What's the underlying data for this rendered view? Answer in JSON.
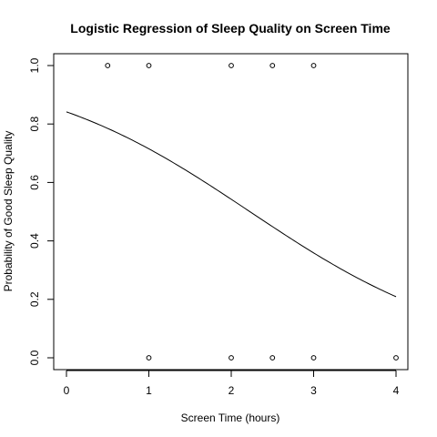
{
  "chart_data": {
    "type": "scatter",
    "title": "Logistic Regression of Sleep Quality on Screen Time",
    "xlabel": "Screen Time (hours)",
    "ylabel": "Probability of Good Sleep Quality",
    "xlim": [
      0,
      4
    ],
    "ylim": [
      0,
      1
    ],
    "x_ticks": [
      0,
      1,
      2,
      3,
      4
    ],
    "x_tick_labels": [
      "0",
      "1",
      "2",
      "3",
      "4"
    ],
    "y_ticks": [
      0,
      0.2,
      0.4,
      0.6,
      0.8,
      1
    ],
    "y_tick_labels": [
      "0.0",
      "0.2",
      "0.4",
      "0.6",
      "0.8",
      "1.0"
    ],
    "grid": false,
    "points": [
      {
        "x": 0.5,
        "y": 1
      },
      {
        "x": 1,
        "y": 1
      },
      {
        "x": 2,
        "y": 1
      },
      {
        "x": 2.5,
        "y": 1
      },
      {
        "x": 3,
        "y": 1
      },
      {
        "x": 1,
        "y": 0
      },
      {
        "x": 2,
        "y": 0
      },
      {
        "x": 2.5,
        "y": 0
      },
      {
        "x": 3,
        "y": 0
      },
      {
        "x": 4,
        "y": 0
      }
    ],
    "fitted_curve": {
      "model": "logistic",
      "intercept": 1.67,
      "slope": -0.75
    },
    "colors": {
      "foreground": "#000000",
      "background": "#ffffff"
    }
  }
}
